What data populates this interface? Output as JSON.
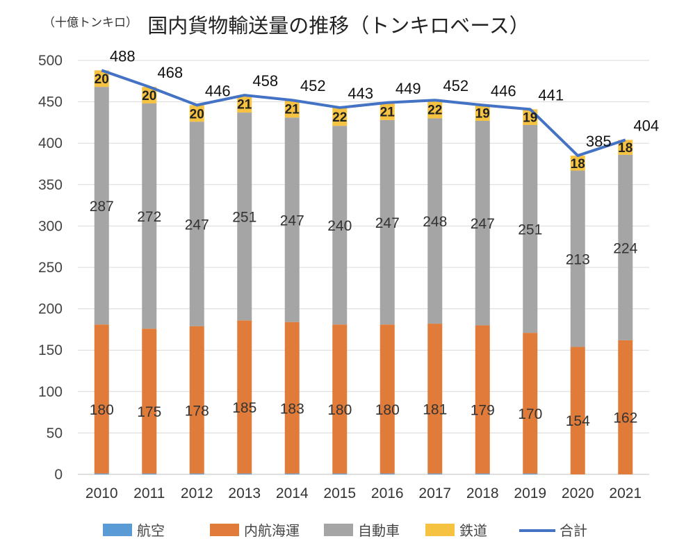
{
  "chart_data": {
    "type": "bar",
    "stacked": true,
    "title": "国内貨物輸送量の推移（トンキロベース）",
    "ylabel": "（十億トンキロ）",
    "xlabel": "",
    "ylim": [
      0,
      500
    ],
    "yticks": [
      0,
      50,
      100,
      150,
      200,
      250,
      300,
      350,
      400,
      450,
      500
    ],
    "grid": true,
    "legend_position": "bottom",
    "categories": [
      "2010",
      "2011",
      "2012",
      "2013",
      "2014",
      "2015",
      "2016",
      "2017",
      "2018",
      "2019",
      "2020",
      "2021"
    ],
    "series": [
      {
        "name": "航空",
        "type": "bar",
        "color": "#5b9bd5",
        "values": [
          1,
          1,
          1,
          1,
          1,
          1,
          1,
          1,
          1,
          1,
          0,
          0
        ]
      },
      {
        "name": "内航海運",
        "type": "bar",
        "color": "#e07b39",
        "values": [
          180,
          175,
          178,
          185,
          183,
          180,
          180,
          181,
          179,
          170,
          154,
          162
        ]
      },
      {
        "name": "自動車",
        "type": "bar",
        "color": "#a5a5a5",
        "values": [
          287,
          272,
          247,
          251,
          247,
          240,
          247,
          248,
          247,
          251,
          213,
          224
        ]
      },
      {
        "name": "鉄道",
        "type": "bar",
        "color": "#f5c242",
        "values": [
          20,
          20,
          20,
          21,
          21,
          22,
          21,
          22,
          19,
          19,
          18,
          18
        ]
      },
      {
        "name": "合計",
        "type": "line",
        "color": "#4472c4",
        "values": [
          488,
          468,
          446,
          458,
          452,
          443,
          449,
          452,
          446,
          441,
          385,
          404
        ]
      }
    ]
  }
}
